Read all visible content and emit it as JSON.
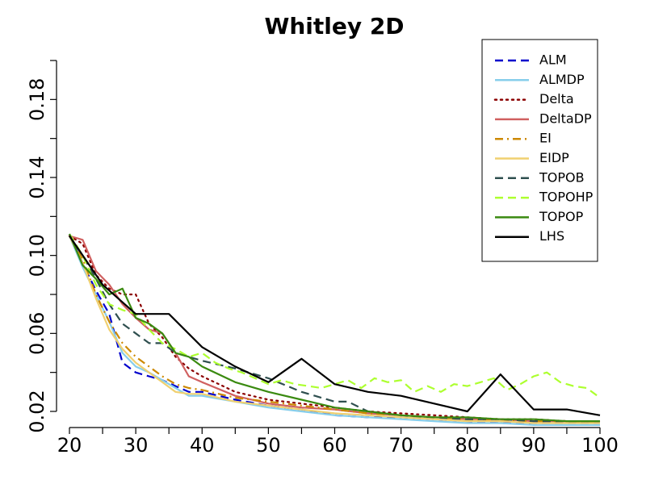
{
  "chart_data": {
    "type": "line",
    "title": "Whitley 2D",
    "xlabel": "",
    "ylabel": "",
    "xlim": [
      20,
      100
    ],
    "ylim": [
      0.02,
      0.2
    ],
    "xticks": [
      20,
      30,
      40,
      50,
      60,
      70,
      80,
      90,
      100
    ],
    "yticks": [
      0.02,
      0.06,
      0.1,
      0.14,
      0.18
    ],
    "ytick_labels": [
      "0.02",
      "0.06",
      "0.10",
      "0.14",
      "0.18"
    ],
    "grid": false,
    "legend_position": "top-right",
    "series": [
      {
        "name": "ALM",
        "color": "#0000cc",
        "dash": "dashed",
        "x": [
          20,
          22,
          24,
          26,
          28,
          30,
          32,
          34,
          36,
          38,
          40,
          45,
          50,
          55,
          60,
          65,
          70,
          75,
          80,
          85,
          90,
          95,
          100
        ],
        "y": [
          0.111,
          0.096,
          0.082,
          0.07,
          0.045,
          0.04,
          0.038,
          0.036,
          0.033,
          0.03,
          0.03,
          0.026,
          0.023,
          0.021,
          0.018,
          0.017,
          0.017,
          0.016,
          0.015,
          0.014,
          0.014,
          0.014,
          0.014
        ]
      },
      {
        "name": "ALMDP",
        "color": "#87ceeb",
        "dash": "solid",
        "x": [
          20,
          22,
          24,
          26,
          28,
          30,
          32,
          34,
          36,
          38,
          40,
          45,
          50,
          55,
          60,
          65,
          70,
          75,
          80,
          85,
          90,
          95,
          100
        ],
        "y": [
          0.11,
          0.094,
          0.08,
          0.066,
          0.05,
          0.043,
          0.04,
          0.036,
          0.032,
          0.028,
          0.028,
          0.025,
          0.022,
          0.02,
          0.018,
          0.017,
          0.016,
          0.015,
          0.014,
          0.014,
          0.013,
          0.013,
          0.013
        ]
      },
      {
        "name": "Delta",
        "color": "#8b0000",
        "dash": "dotted",
        "x": [
          20,
          22,
          24,
          26,
          28,
          30,
          32,
          34,
          36,
          38,
          40,
          45,
          50,
          55,
          60,
          65,
          70,
          75,
          80,
          85,
          90,
          95,
          100
        ],
        "y": [
          0.11,
          0.106,
          0.09,
          0.083,
          0.08,
          0.08,
          0.065,
          0.058,
          0.048,
          0.042,
          0.038,
          0.03,
          0.026,
          0.024,
          0.022,
          0.02,
          0.019,
          0.018,
          0.017,
          0.016,
          0.016,
          0.015,
          0.015
        ]
      },
      {
        "name": "DeltaDP",
        "color": "#d06060",
        "dash": "solid",
        "x": [
          20,
          22,
          24,
          26,
          28,
          30,
          32,
          34,
          36,
          38,
          40,
          45,
          50,
          55,
          60,
          65,
          70,
          75,
          80,
          85,
          90,
          95,
          100
        ],
        "y": [
          0.11,
          0.108,
          0.092,
          0.085,
          0.075,
          0.068,
          0.062,
          0.06,
          0.05,
          0.038,
          0.035,
          0.028,
          0.024,
          0.022,
          0.021,
          0.019,
          0.018,
          0.017,
          0.016,
          0.016,
          0.015,
          0.015,
          0.015
        ]
      },
      {
        "name": "EI",
        "color": "#cc8800",
        "dash": "dashdot",
        "x": [
          20,
          22,
          24,
          26,
          28,
          30,
          32,
          34,
          36,
          38,
          40,
          45,
          50,
          55,
          60,
          65,
          70,
          75,
          80,
          85,
          90,
          95,
          100
        ],
        "y": [
          0.11,
          0.098,
          0.08,
          0.066,
          0.055,
          0.048,
          0.043,
          0.038,
          0.034,
          0.032,
          0.031,
          0.027,
          0.025,
          0.023,
          0.021,
          0.019,
          0.018,
          0.017,
          0.016,
          0.015,
          0.015,
          0.015,
          0.014
        ]
      },
      {
        "name": "EIDP",
        "color": "#f0d070",
        "dash": "solid",
        "x": [
          20,
          22,
          24,
          26,
          28,
          30,
          32,
          34,
          36,
          38,
          40,
          45,
          50,
          55,
          60,
          65,
          70,
          75,
          80,
          85,
          90,
          95,
          100
        ],
        "y": [
          0.11,
          0.096,
          0.078,
          0.062,
          0.052,
          0.045,
          0.04,
          0.035,
          0.03,
          0.029,
          0.029,
          0.025,
          0.023,
          0.021,
          0.019,
          0.018,
          0.017,
          0.016,
          0.015,
          0.015,
          0.014,
          0.014,
          0.014
        ]
      },
      {
        "name": "TOPOB",
        "color": "#2f4f4f",
        "dash": "dashed",
        "x": [
          20,
          22,
          24,
          26,
          28,
          30,
          32,
          34,
          36,
          38,
          40,
          45,
          50,
          55,
          60,
          62,
          65,
          70,
          75,
          80,
          85,
          90,
          95,
          100
        ],
        "y": [
          0.11,
          0.1,
          0.088,
          0.075,
          0.065,
          0.06,
          0.055,
          0.055,
          0.05,
          0.048,
          0.046,
          0.042,
          0.037,
          0.03,
          0.025,
          0.025,
          0.02,
          0.018,
          0.017,
          0.016,
          0.016,
          0.015,
          0.015,
          0.015
        ]
      },
      {
        "name": "TOPOHP",
        "color": "#adff2f",
        "dash": "dashed",
        "x": [
          20,
          22,
          24,
          26,
          28,
          30,
          32,
          34,
          36,
          38,
          40,
          42,
          44,
          46,
          48,
          50,
          52,
          54,
          56,
          58,
          60,
          62,
          64,
          66,
          68,
          70,
          72,
          74,
          76,
          78,
          80,
          82,
          84,
          86,
          88,
          90,
          92,
          94,
          96,
          98,
          100
        ],
        "y": [
          0.111,
          0.1,
          0.085,
          0.075,
          0.072,
          0.07,
          0.062,
          0.055,
          0.052,
          0.048,
          0.05,
          0.045,
          0.042,
          0.04,
          0.037,
          0.034,
          0.036,
          0.034,
          0.033,
          0.032,
          0.034,
          0.036,
          0.032,
          0.037,
          0.035,
          0.036,
          0.03,
          0.033,
          0.03,
          0.034,
          0.033,
          0.035,
          0.037,
          0.031,
          0.034,
          0.038,
          0.04,
          0.035,
          0.033,
          0.032,
          0.027
        ]
      },
      {
        "name": "TOPOP",
        "color": "#3a8a10",
        "dash": "solid",
        "x": [
          20,
          22,
          24,
          26,
          28,
          30,
          32,
          34,
          36,
          38,
          40,
          45,
          50,
          55,
          60,
          65,
          70,
          75,
          80,
          85,
          90,
          95,
          100
        ],
        "y": [
          0.111,
          0.095,
          0.088,
          0.08,
          0.083,
          0.068,
          0.065,
          0.06,
          0.05,
          0.048,
          0.043,
          0.035,
          0.03,
          0.026,
          0.022,
          0.02,
          0.018,
          0.017,
          0.017,
          0.016,
          0.016,
          0.015,
          0.015
        ]
      },
      {
        "name": "LHS",
        "color": "#000000",
        "dash": "solid",
        "x": [
          20,
          25,
          30,
          35,
          40,
          45,
          50,
          55,
          60,
          65,
          70,
          75,
          80,
          85,
          90,
          95,
          100
        ],
        "y": [
          0.11,
          0.085,
          0.07,
          0.07,
          0.053,
          0.043,
          0.035,
          0.047,
          0.034,
          0.03,
          0.028,
          0.024,
          0.02,
          0.039,
          0.021,
          0.021,
          0.018
        ]
      }
    ]
  }
}
